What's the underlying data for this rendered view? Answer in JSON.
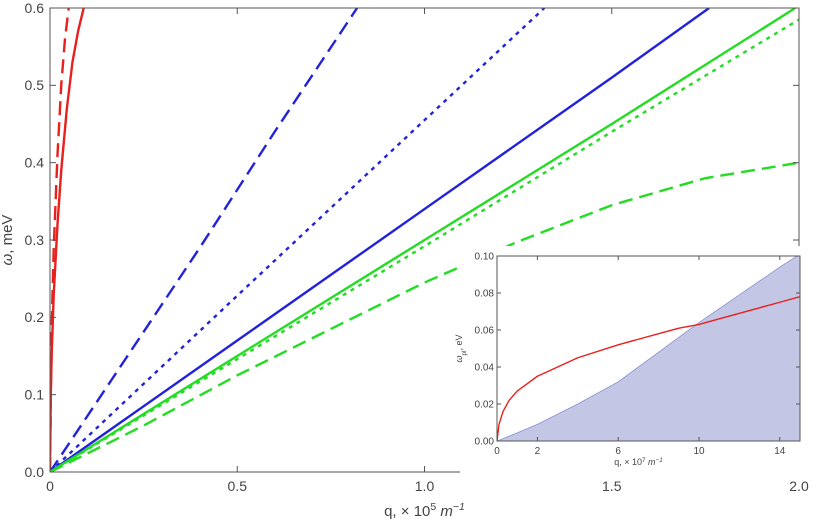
{
  "chart_data": [
    {
      "type": "line",
      "xlabel_parts": {
        "base": "q, × 10",
        "exp": "5",
        "unit": " m",
        "unit_exp": "−1"
      },
      "ylabel_parts": {
        "symbol": "ω",
        "rest": ", meV"
      },
      "xlim": [
        0,
        2.0
      ],
      "ylim": [
        0,
        0.6
      ],
      "x_ticks": [
        0,
        0.5,
        1.0,
        1.5,
        2.0
      ],
      "x_tick_labels": [
        "0",
        "0.5",
        "1.0",
        "1.5",
        "2.0"
      ],
      "y_ticks": [
        0,
        0.1,
        0.2,
        0.3,
        0.4,
        0.5,
        0.6
      ],
      "y_tick_labels": [
        "0.0",
        "0.1",
        "0.2",
        "0.3",
        "0.4",
        "0.5",
        "0.6"
      ],
      "grid": false,
      "series": [
        {
          "color": "#e8201e",
          "style": "solid",
          "x": [
            0,
            0.002,
            0.005,
            0.01,
            0.02,
            0.03,
            0.045,
            0.06,
            0.075,
            0.09
          ],
          "y": [
            0,
            0.1,
            0.16,
            0.23,
            0.32,
            0.39,
            0.47,
            0.53,
            0.57,
            0.6
          ]
        },
        {
          "color": "#e8201e",
          "style": "dashed",
          "x": [
            0,
            0.004,
            0.01,
            0.02,
            0.03,
            0.04,
            0.05
          ],
          "y": [
            0,
            0.18,
            0.29,
            0.41,
            0.5,
            0.56,
            0.6
          ]
        },
        {
          "color": "#2222dd",
          "style": "solid",
          "x": [
            0,
            0.5,
            1.0,
            1.5,
            1.76
          ],
          "y": [
            0,
            0.17,
            0.34,
            0.51,
            0.6
          ]
        },
        {
          "color": "#2222dd",
          "style": "dashed",
          "x": [
            0,
            0.2,
            0.4,
            0.6,
            0.82
          ],
          "y": [
            0,
            0.145,
            0.29,
            0.44,
            0.6
          ]
        },
        {
          "color": "#2222dd",
          "style": "dotted",
          "x": [
            0,
            0.5,
            1.0,
            1.32
          ],
          "y": [
            0,
            0.228,
            0.455,
            0.6
          ]
        },
        {
          "color": "#22dd22",
          "style": "solid",
          "x": [
            0,
            0.5,
            1.0,
            1.5,
            1.99
          ],
          "y": [
            0,
            0.15,
            0.3,
            0.45,
            0.6
          ]
        },
        {
          "color": "#22dd22",
          "style": "dotted",
          "x": [
            0,
            0.5,
            1.0,
            1.5,
            2.0
          ],
          "y": [
            0,
            0.146,
            0.292,
            0.44,
            0.585
          ]
        },
        {
          "color": "#22dd22",
          "style": "dashed",
          "x": [
            0,
            0.25,
            0.5,
            0.75,
            1.0,
            1.25,
            1.5,
            1.75,
            2.0
          ],
          "y": [
            0,
            0.06,
            0.125,
            0.185,
            0.245,
            0.298,
            0.345,
            0.38,
            0.4
          ]
        }
      ]
    },
    {
      "type": "area",
      "xlabel_parts": {
        "base": "q, × 10",
        "exp": "7",
        "unit": " m",
        "unit_exp": "−1"
      },
      "ylabel_parts": {
        "symbol": "ω",
        "sub": "pl",
        "rest": ", eV"
      },
      "xlim": [
        0,
        15
      ],
      "ylim": [
        0,
        0.1
      ],
      "x_ticks": [
        0,
        2,
        6,
        10,
        14
      ],
      "x_tick_labels": [
        "0",
        "2",
        "6",
        "10",
        "14"
      ],
      "y_ticks": [
        0,
        0.02,
        0.04,
        0.06,
        0.08,
        0.1
      ],
      "y_tick_labels": [
        "0.00",
        "0.02",
        "0.04",
        "0.06",
        "0.08",
        "0.10"
      ],
      "grid": false,
      "shaded_region": {
        "color": "#b9bce0",
        "boundary_x": [
          0,
          1,
          2,
          4,
          6,
          8,
          10,
          12,
          14,
          15
        ],
        "boundary_y": [
          0,
          0.0044,
          0.009,
          0.02,
          0.032,
          0.048,
          0.064,
          0.079,
          0.094,
          0.101
        ]
      },
      "series": [
        {
          "color": "#e8201e",
          "style": "solid",
          "x": [
            0,
            0.1,
            0.3,
            0.6,
            1,
            2,
            4,
            6,
            8,
            9,
            10,
            12,
            14,
            15
          ],
          "y": [
            0,
            0.009,
            0.016,
            0.022,
            0.027,
            0.035,
            0.045,
            0.052,
            0.058,
            0.061,
            0.063,
            0.069,
            0.075,
            0.078
          ]
        }
      ]
    }
  ]
}
